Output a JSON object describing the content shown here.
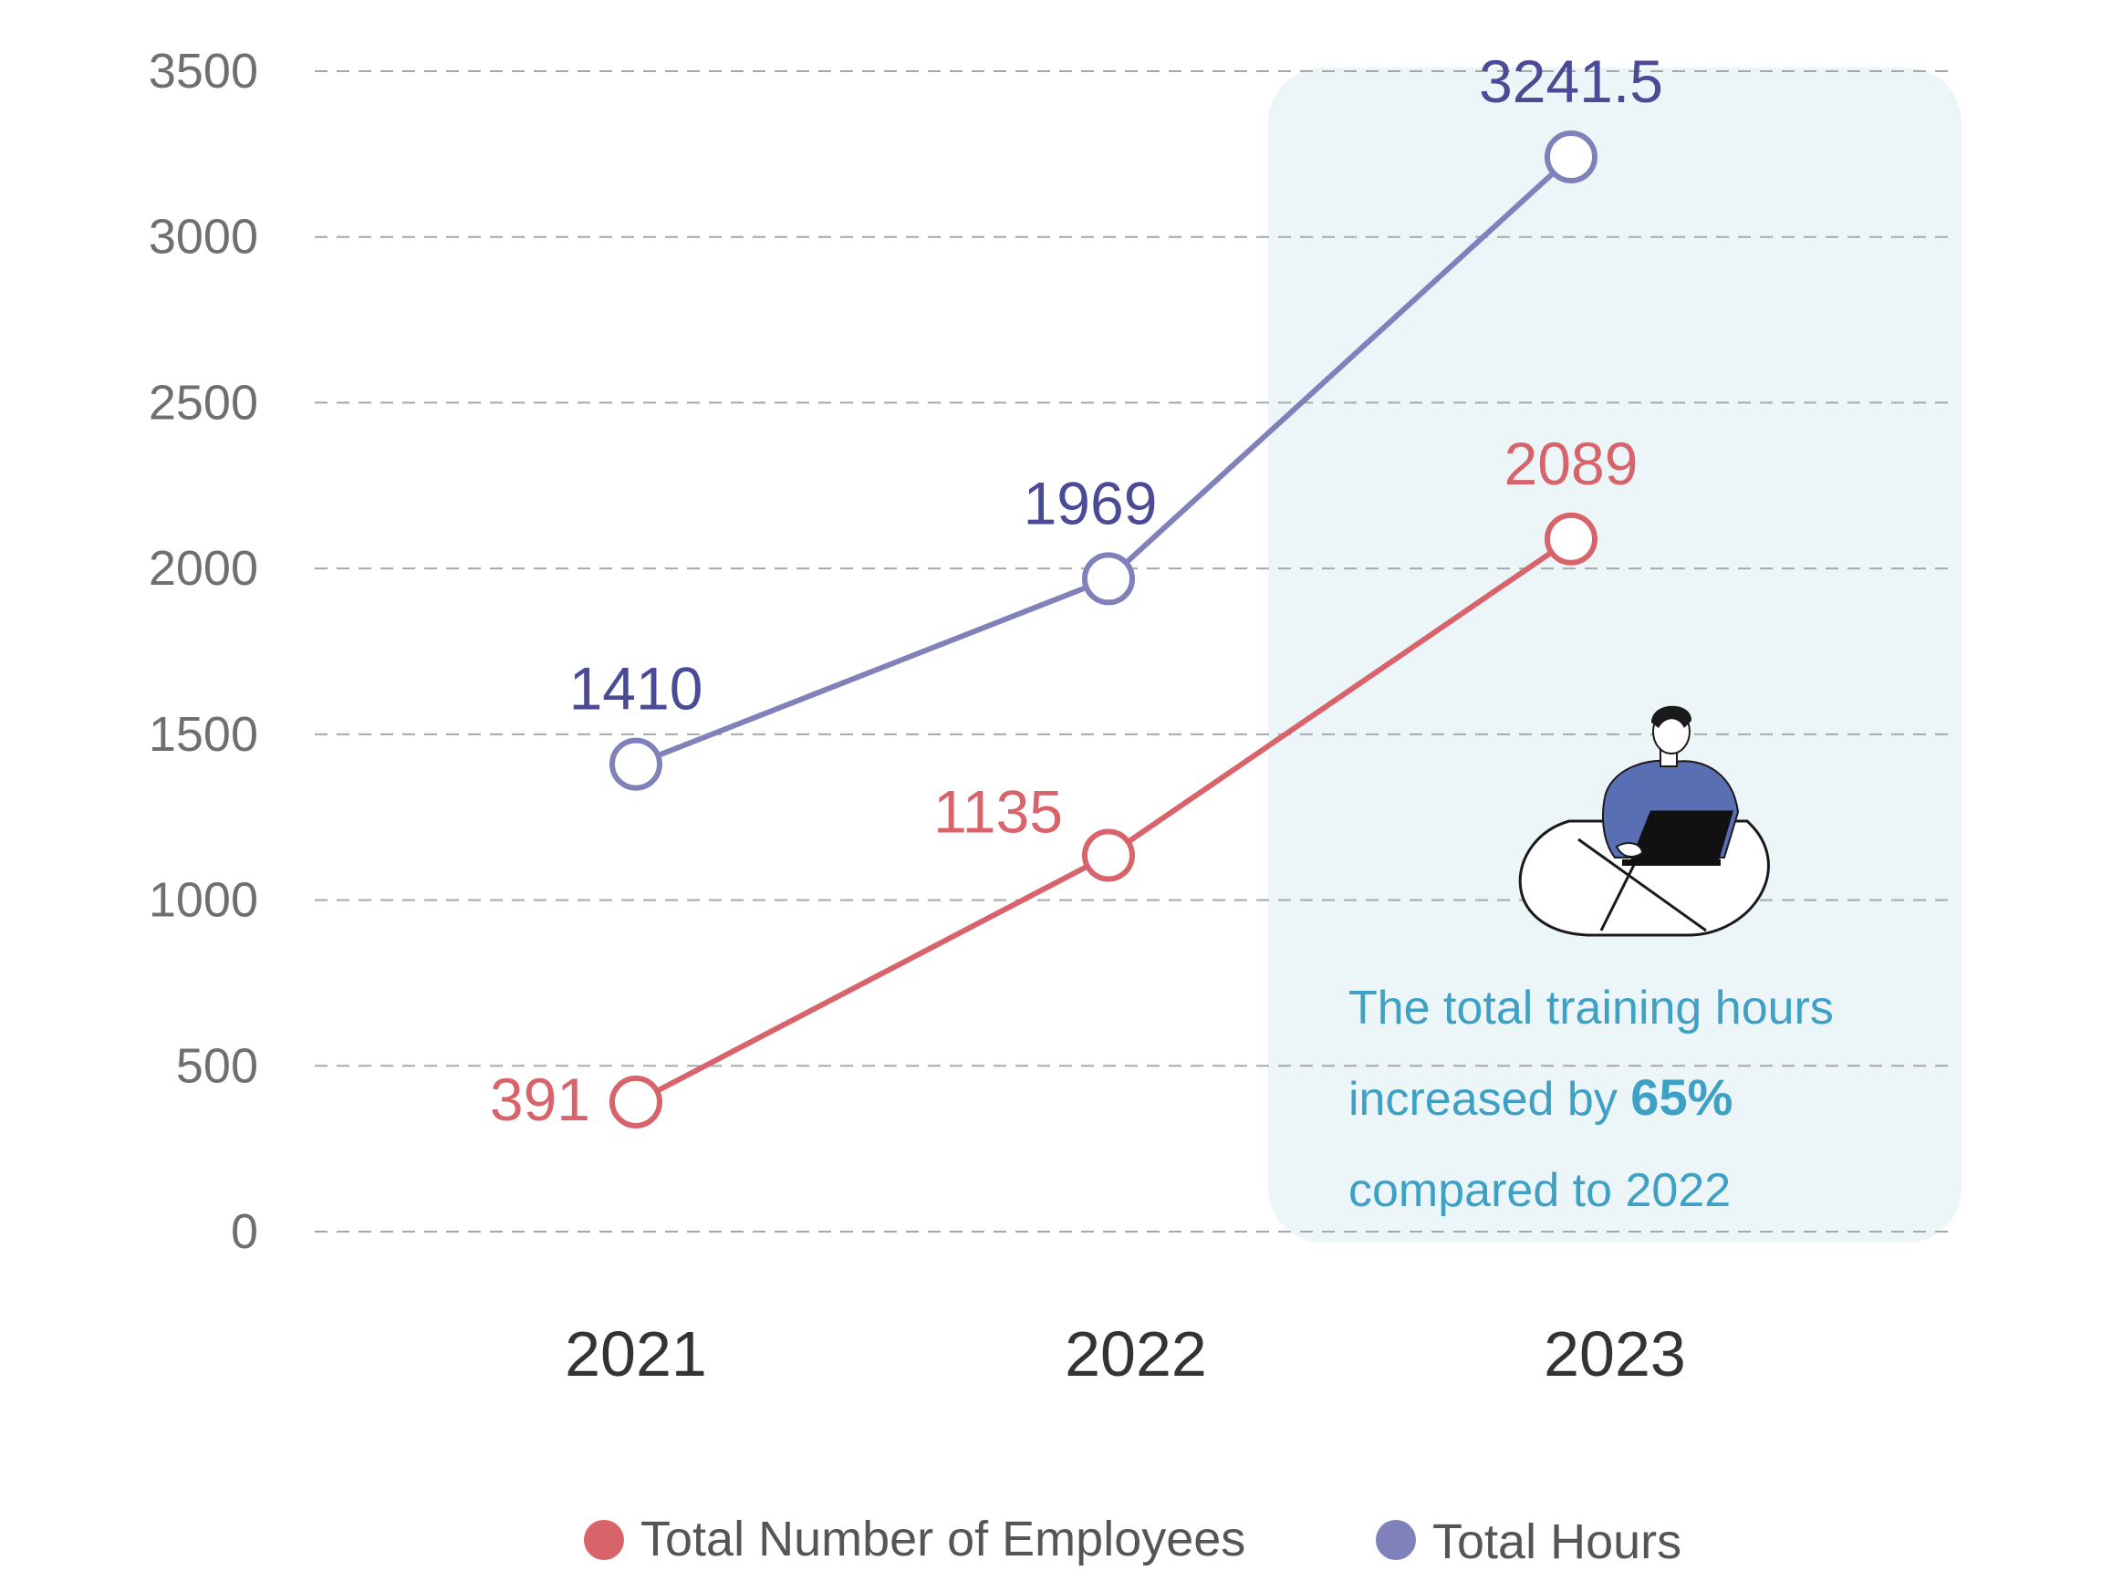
{
  "chart_data": {
    "type": "line",
    "categories": [
      "2021",
      "2022",
      "2023"
    ],
    "series": [
      {
        "name": "Total Number of Employees",
        "values": [
          391,
          1135,
          2089
        ],
        "color": "#d9636b",
        "label_color": "#d9636b"
      },
      {
        "name": "Total Hours",
        "values": [
          1410,
          1969,
          3241.5
        ],
        "color": "#8080bb",
        "label_color": "#4a4a96"
      }
    ],
    "yticks": [
      "0",
      "500",
      "1000",
      "1500",
      "2000",
      "2500",
      "3000",
      "3500"
    ],
    "ylim": [
      0,
      3500
    ],
    "grid": true,
    "legend_position": "bottom",
    "highlight_category": "2023",
    "highlight_color": "#ecf5f8",
    "annotation": {
      "line1": "The total training hours",
      "line2_prefix": "increased by ",
      "line2_emphasis": "65%",
      "line3": "compared to 2022",
      "color": "#3fa0c6",
      "illustration": "person-with-laptop-icon"
    }
  }
}
